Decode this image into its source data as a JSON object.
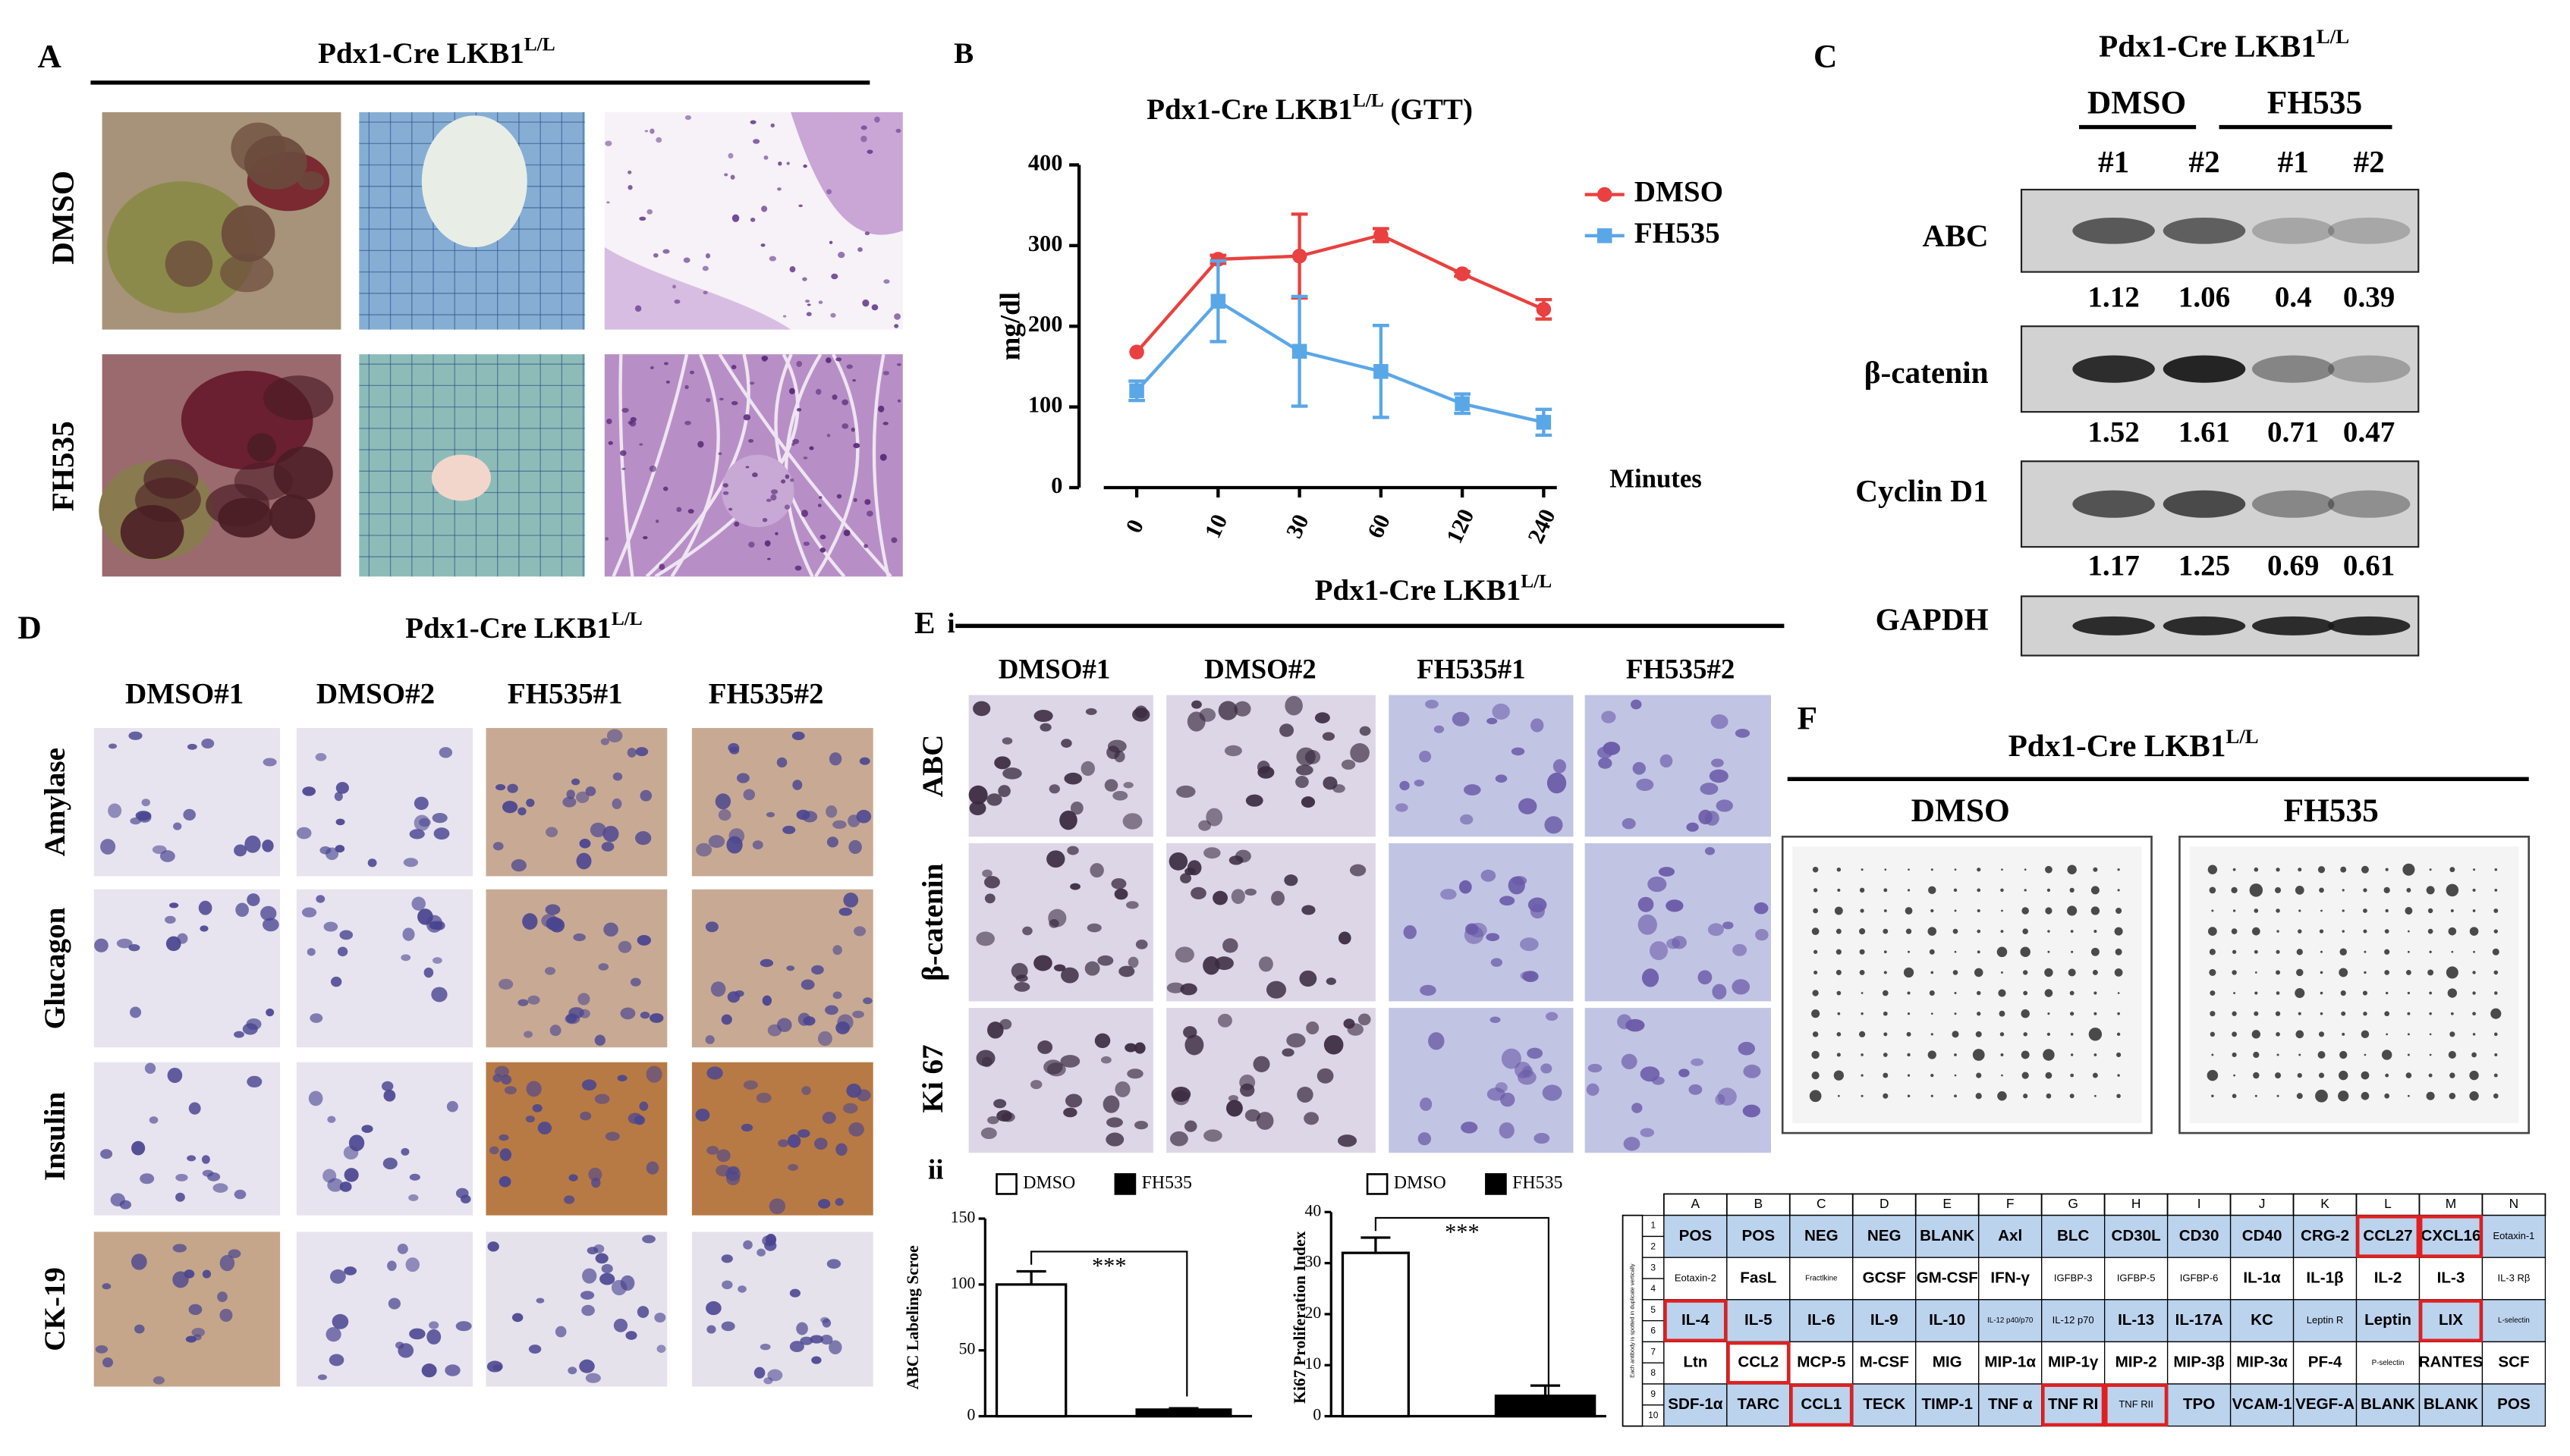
{
  "panels": {
    "A": {
      "label": "A",
      "title": "Pdx1-Cre LKB1",
      "title_sup": "L/L",
      "rows": [
        "DMSO",
        "FH535"
      ]
    },
    "B": {
      "label": "B"
    },
    "C": {
      "label": "C",
      "title": "Pdx1-Cre LKB1",
      "title_sup": "L/L",
      "groups": [
        "DMSO",
        "FH535"
      ],
      "lanes": [
        "#1",
        "#2",
        "#1",
        "#2"
      ],
      "blots": [
        {
          "name": "ABC",
          "quant": [
            1.12,
            1.06,
            0.4,
            0.39
          ]
        },
        {
          "name": "β-catenin",
          "quant": [
            1.52,
            1.61,
            0.71,
            0.47
          ]
        },
        {
          "name": "Cyclin D1",
          "quant": [
            1.17,
            1.25,
            0.69,
            0.61
          ]
        },
        {
          "name": "GAPDH"
        }
      ]
    },
    "D": {
      "label": "D",
      "title": "Pdx1-Cre LKB1",
      "title_sup": "L/L",
      "columns": [
        "DMSO#1",
        "DMSO#2",
        "FH535#1",
        "FH535#2"
      ],
      "rows": [
        "Amylase",
        "Glucagon",
        "Insulin",
        "CK-19"
      ]
    },
    "E": {
      "label": "E",
      "sublabel": "i",
      "title": "Pdx1-Cre LKB1",
      "title_sup": "L/L",
      "columns": [
        "DMSO#1",
        "DMSO#2",
        "FH535#1",
        "FH535#2"
      ],
      "rows": [
        "ABC",
        "β-catenin",
        "Ki 67"
      ],
      "sublabel_2": "ii"
    },
    "F": {
      "label": "F",
      "title": "Pdx1-Cre LKB1",
      "title_sup": "L/L",
      "arrays": [
        "DMSO",
        "FH535"
      ],
      "table": {
        "side_note": "Each antibody is spotted in duplicate vertically",
        "columns": [
          "A",
          "B",
          "C",
          "D",
          "E",
          "F",
          "G",
          "H",
          "I",
          "J",
          "K",
          "L",
          "M",
          "N"
        ],
        "rows": [
          {
            "numbers": [
              1,
              2
            ],
            "shaded": true,
            "cells": [
              "POS",
              "POS",
              "NEG",
              "NEG",
              "BLANK",
              "Axl",
              "BLC",
              "CD30L",
              "CD30",
              "CD40",
              "CRG-2",
              {
                "text": "CCL27",
                "highlight": true
              },
              {
                "text": "CXCL16",
                "highlight": true
              },
              "Eotaxin-1"
            ]
          },
          {
            "numbers": [
              3,
              4
            ],
            "shaded": false,
            "cells": [
              "Eotaxin-2",
              "FasL",
              "Fractlkine",
              "GCSF",
              "GM-CSF",
              "IFN-γ",
              "IGFBP-3",
              "IGFBP-5",
              "IGFBP-6",
              "IL-1α",
              "IL-1β",
              "IL-2",
              "IL-3",
              "IL-3 Rβ"
            ]
          },
          {
            "numbers": [
              5,
              6
            ],
            "shaded": true,
            "cells": [
              {
                "text": "IL-4",
                "highlight": true
              },
              "IL-5",
              "IL-6",
              "IL-9",
              "IL-10",
              "IL-12 p40/p70",
              "IL-12 p70",
              "IL-13",
              "IL-17A",
              "KC",
              "Leptin R",
              "Leptin",
              {
                "text": "LIX",
                "highlight": true
              },
              "L-selectin"
            ]
          },
          {
            "numbers": [
              7,
              8
            ],
            "shaded": false,
            "cells": [
              "Ltn",
              {
                "text": "CCL2",
                "highlight": true
              },
              "MCP-5",
              "M-CSF",
              "MIG",
              "MIP-1α",
              "MIP-1γ",
              "MIP-2",
              "MIP-3β",
              "MIP-3α",
              "PF-4",
              "P-selectin",
              "RANTES",
              "SCF"
            ]
          },
          {
            "numbers": [
              9,
              10
            ],
            "shaded": true,
            "cells": [
              "SDF-1α",
              "TARC",
              {
                "text": "CCL1",
                "highlight": true
              },
              "TECK",
              "TIMP-1",
              "TNF α",
              {
                "text": "TNF RI",
                "highlight": true
              },
              {
                "text": "TNF RII",
                "highlight": true
              },
              "TPO",
              "VCAM-1",
              "VEGF-A",
              "BLANK",
              "BLANK",
              "POS"
            ]
          }
        ]
      }
    }
  },
  "chart_data": [
    {
      "type": "line",
      "title": "Pdx1-Cre LKB1",
      "title_sup": "L/L",
      "title_suffix": "(GTT)",
      "y_label": "mg/dl",
      "x_label": "Minutes",
      "categories": [
        "0",
        "10",
        "30",
        "60",
        "120",
        "240"
      ],
      "ylim": [
        0,
        400
      ],
      "yticks": [
        0,
        100,
        200,
        300,
        400
      ],
      "legend": "top-right",
      "series": [
        {
          "name": "DMSO",
          "color": "#e8413f",
          "values": [
            168,
            283,
            287,
            313,
            265,
            221
          ],
          "errors": [
            null,
            5,
            52,
            8,
            3,
            12
          ]
        },
        {
          "name": "FH535",
          "color": "#5aa7e8",
          "values": [
            120,
            231,
            169,
            144,
            104,
            81
          ],
          "errors": [
            12,
            50,
            68,
            57,
            12,
            16
          ]
        }
      ]
    },
    {
      "type": "bar",
      "y_label": "ABC Labeling Scroe",
      "annotation": "***",
      "ylim": [
        0,
        150
      ],
      "yticks": [
        0,
        50,
        100,
        150
      ],
      "series": [
        {
          "name": "DMSO",
          "color": "#ffffff",
          "values": [
            100
          ],
          "errors": [
            10
          ]
        },
        {
          "name": "FH535",
          "color": "#000000",
          "values": [
            5
          ],
          "errors": [
            1
          ]
        }
      ]
    },
    {
      "type": "bar",
      "y_label": "Ki67 Proliferation Index",
      "annotation": "***",
      "ylim": [
        0,
        40
      ],
      "yticks": [
        0,
        10,
        20,
        30,
        40
      ],
      "series": [
        {
          "name": "DMSO",
          "color": "#ffffff",
          "values": [
            32
          ],
          "errors": [
            3
          ]
        },
        {
          "name": "FH535",
          "color": "#000000",
          "values": [
            4
          ],
          "errors": [
            2
          ]
        }
      ]
    }
  ]
}
